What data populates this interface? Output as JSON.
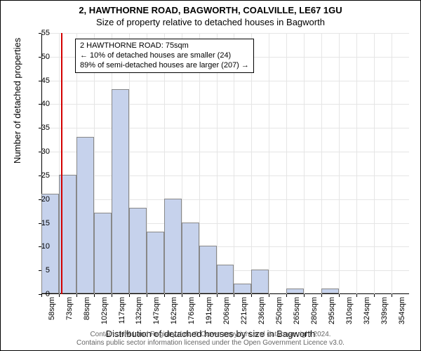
{
  "title": "2, HAWTHORNE ROAD, BAGWORTH, COALVILLE, LE67 1GU",
  "subtitle": "Size of property relative to detached houses in Bagworth",
  "ylabel": "Number of detached properties",
  "xlabel": "Distribution of detached houses by size in Bagworth",
  "chart": {
    "type": "histogram",
    "ylim": [
      0,
      55
    ],
    "ytick_step": 5,
    "background_color": "#ffffff",
    "grid_color": "#e5e5e5",
    "bar_color": "#c6d2ec",
    "bar_border_color": "#888888",
    "ref_line_color": "#d40000",
    "ref_line_x": 75,
    "x_start": 58,
    "x_bin_width": 15,
    "bins": [
      {
        "label": "58sqm",
        "value": 21
      },
      {
        "label": "73sqm",
        "value": 25
      },
      {
        "label": "88sqm",
        "value": 33
      },
      {
        "label": "102sqm",
        "value": 17
      },
      {
        "label": "117sqm",
        "value": 43
      },
      {
        "label": "132sqm",
        "value": 18
      },
      {
        "label": "147sqm",
        "value": 13
      },
      {
        "label": "162sqm",
        "value": 20
      },
      {
        "label": "176sqm",
        "value": 15
      },
      {
        "label": "191sqm",
        "value": 10
      },
      {
        "label": "206sqm",
        "value": 6
      },
      {
        "label": "221sqm",
        "value": 2
      },
      {
        "label": "236sqm",
        "value": 5
      },
      {
        "label": "250sqm",
        "value": 0
      },
      {
        "label": "265sqm",
        "value": 1
      },
      {
        "label": "280sqm",
        "value": 0
      },
      {
        "label": "295sqm",
        "value": 1
      },
      {
        "label": "310sqm",
        "value": 0
      },
      {
        "label": "324sqm",
        "value": 0
      },
      {
        "label": "339sqm",
        "value": 0
      },
      {
        "label": "354sqm",
        "value": 0
      }
    ]
  },
  "info_box": {
    "line1": "2 HAWTHORNE ROAD: 75sqm",
    "line2": "← 10% of detached houses are smaller (24)",
    "line3": "89% of semi-detached houses are larger (207) →"
  },
  "footer": {
    "line1": "Contains HM Land Registry data © Crown copyright and database right 2024.",
    "line2": "Contains public sector information licensed under the Open Government Licence v3.0."
  }
}
